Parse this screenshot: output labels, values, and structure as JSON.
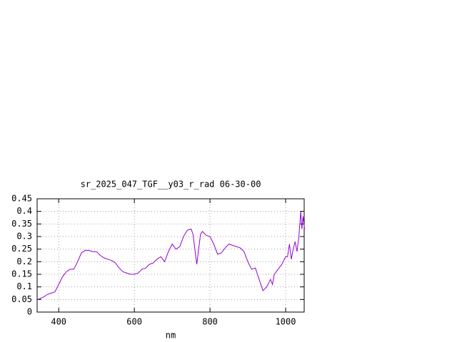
{
  "chart_data": {
    "type": "line",
    "title": "sr_2025_047_TGF__y03_r_rad 06-30-00",
    "x_label": "nm",
    "x": [
      345,
      360,
      370,
      380,
      390,
      400,
      410,
      420,
      430,
      440,
      450,
      460,
      470,
      480,
      490,
      500,
      510,
      520,
      530,
      540,
      550,
      560,
      570,
      580,
      590,
      600,
      610,
      620,
      630,
      640,
      650,
      660,
      670,
      680,
      690,
      700,
      710,
      720,
      730,
      740,
      750,
      755,
      760,
      765,
      770,
      775,
      780,
      790,
      800,
      810,
      820,
      830,
      840,
      850,
      860,
      870,
      880,
      890,
      900,
      910,
      920,
      930,
      940,
      950,
      960,
      965,
      970,
      980,
      990,
      1000,
      1005,
      1010,
      1015,
      1020,
      1025,
      1030,
      1035,
      1040,
      1043,
      1046,
      1050
    ],
    "series": [
      {
        "color": "#9400d3",
        "values": [
          0.05,
          0.06,
          0.07,
          0.075,
          0.08,
          0.11,
          0.14,
          0.16,
          0.17,
          0.17,
          0.2,
          0.235,
          0.245,
          0.245,
          0.24,
          0.24,
          0.225,
          0.215,
          0.21,
          0.205,
          0.195,
          0.175,
          0.16,
          0.155,
          0.15,
          0.15,
          0.155,
          0.17,
          0.175,
          0.19,
          0.195,
          0.21,
          0.22,
          0.2,
          0.24,
          0.27,
          0.25,
          0.26,
          0.3,
          0.325,
          0.33,
          0.31,
          0.25,
          0.19,
          0.25,
          0.31,
          0.32,
          0.305,
          0.3,
          0.27,
          0.23,
          0.235,
          0.255,
          0.27,
          0.265,
          0.26,
          0.255,
          0.24,
          0.2,
          0.17,
          0.175,
          0.13,
          0.085,
          0.1,
          0.13,
          0.11,
          0.15,
          0.17,
          0.19,
          0.22,
          0.22,
          0.27,
          0.21,
          0.25,
          0.28,
          0.24,
          0.3,
          0.4,
          0.33,
          0.38,
          0.33
        ]
      }
    ],
    "xlim": [
      343,
      1049
    ],
    "xticks": [
      400,
      600,
      800,
      1000
    ],
    "ylim": [
      0,
      0.45
    ],
    "yticks": [
      0,
      0.05,
      0.1,
      0.15,
      0.2,
      0.25,
      0.3,
      0.35,
      0.4,
      0.45
    ],
    "grid": true
  }
}
